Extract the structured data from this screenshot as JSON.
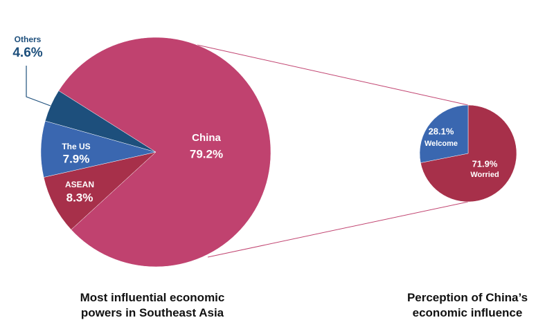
{
  "chart_data": [
    {
      "type": "pie",
      "title": "Most influential economic powers in Southeast Asia",
      "categories": [
        "China",
        "ASEAN",
        "The US",
        "Others"
      ],
      "values": [
        79.2,
        8.3,
        7.9,
        4.6
      ],
      "value_labels": [
        "79.2%",
        "8.3%",
        "7.9%",
        "4.6%"
      ],
      "colors": [
        "#c0426f",
        "#a7304a",
        "#3a67b0",
        "#1d4f7c"
      ]
    },
    {
      "type": "pie",
      "title": "Perception of China’s economic influence",
      "categories": [
        "Worried",
        "Welcome"
      ],
      "values": [
        71.9,
        28.1
      ],
      "value_labels": [
        "71.9%",
        "28.1%"
      ],
      "colors": [
        "#a7304a",
        "#3a67b0"
      ]
    }
  ]
}
